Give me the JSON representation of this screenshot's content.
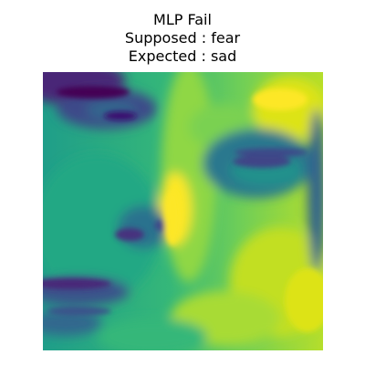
{
  "title": {
    "line1": "MLP Fail",
    "line2": "Supposed : fear",
    "line3": "Expected : sad"
  },
  "image": {
    "description_icon": "face-heatmap-image",
    "colormap": [
      "#440154",
      "#3b528b",
      "#21918c",
      "#5ec962",
      "#fde725"
    ]
  }
}
